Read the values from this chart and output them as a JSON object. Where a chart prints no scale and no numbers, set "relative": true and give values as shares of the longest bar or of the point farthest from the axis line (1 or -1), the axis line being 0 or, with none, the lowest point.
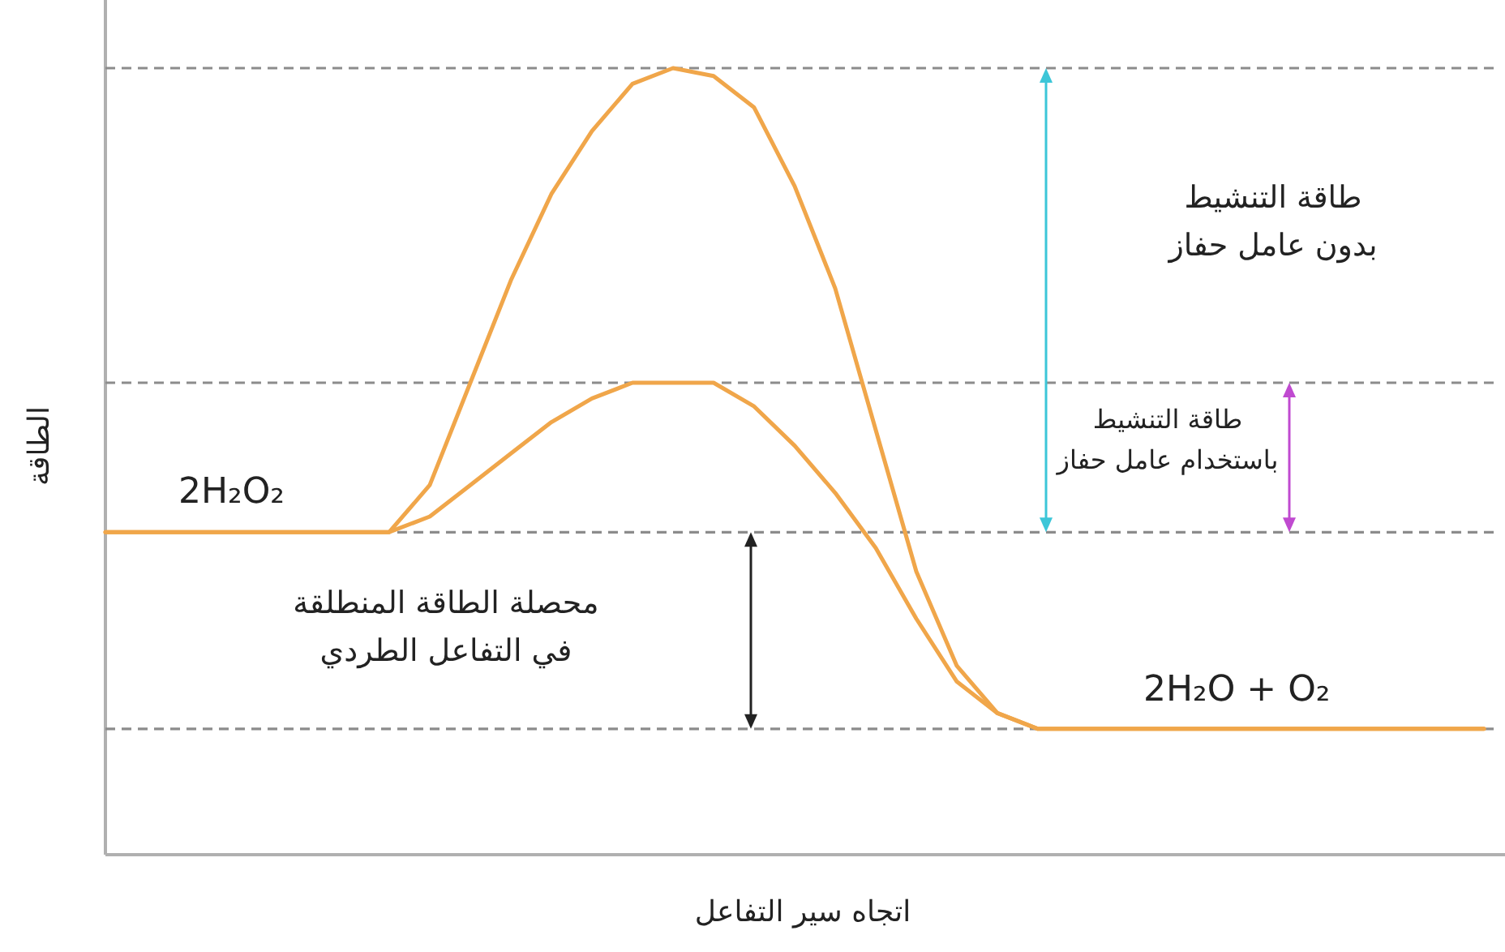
{
  "chart_data": {
    "type": "line",
    "relative": true,
    "xlabel": "اتجاه سير التفاعل",
    "ylabel": "الطاقة",
    "categories": [
      null,
      null,
      null,
      null,
      null,
      null,
      null,
      null,
      null,
      null,
      null,
      null,
      null,
      null,
      null,
      null,
      null,
      null,
      null,
      null,
      null,
      null,
      null,
      null,
      null,
      null,
      null,
      null,
      null,
      null,
      null,
      null,
      null,
      null,
      null
    ],
    "series": [
      {
        "color": "#f0a64a",
        "values": [
          0.41,
          0.41,
          0.41,
          0.41,
          0.41,
          0.41,
          0.41,
          0.41,
          0.47,
          0.6,
          0.73,
          0.84,
          0.92,
          0.98,
          1.0,
          0.99,
          0.95,
          0.85,
          0.72,
          0.54,
          0.36,
          0.24,
          0.18,
          0.16,
          0.16,
          0.16,
          0.16,
          0.16,
          0.16,
          0.16,
          0.16,
          0.16,
          0.16,
          0.16,
          0.16
        ]
      },
      {
        "color": "#f0a64a",
        "values": [
          0.41,
          0.41,
          0.41,
          0.41,
          0.41,
          0.41,
          0.41,
          0.41,
          0.43,
          0.47,
          0.51,
          0.55,
          0.58,
          0.6,
          0.6,
          0.6,
          0.57,
          0.52,
          0.46,
          0.39,
          0.3,
          0.22,
          0.18,
          0.16,
          0.16,
          0.16,
          0.16,
          0.16,
          0.16,
          0.16,
          0.16,
          0.16,
          0.16,
          0.16,
          0.16
        ]
      }
    ],
    "ref_lines": [
      {
        "axis": "y",
        "value": 1.0,
        "color": "#8c8c8c",
        "line_style": "dashed"
      },
      {
        "axis": "y",
        "value": 0.6,
        "color": "#8c8c8c",
        "line_style": "dashed"
      },
      {
        "axis": "y",
        "value": 0.41,
        "color": "#8c8c8c",
        "line_style": "dashed"
      },
      {
        "axis": "y",
        "value": 0.16,
        "color": "#8c8c8c",
        "line_style": "dashed"
      }
    ],
    "annotations": [
      "2H₂O₂",
      "2H₂O + O₂",
      "طاقة التنشيط\nبدون عامل حفاز",
      "طاقة التنشيط\nباستخدام عامل حفاز",
      "محصلة الطاقة المنطلقة\nفي التفاعل الطردي"
    ],
    "marker": "none",
    "line_style": "solid"
  }
}
